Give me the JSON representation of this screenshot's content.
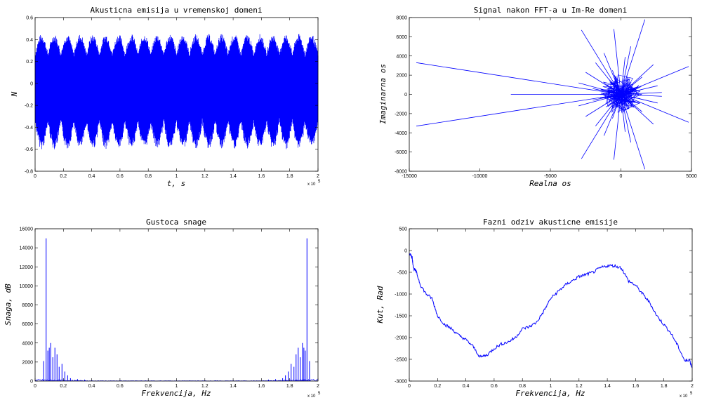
{
  "colors": {
    "series": "#0000ff",
    "axes": "#000000",
    "background": "#ffffff"
  },
  "chart_data": [
    {
      "type": "line",
      "title": "Akusticna emisija u vremenskoj domeni",
      "xlabel": "t, s",
      "ylabel": "N",
      "xlim": [
        0,
        200000
      ],
      "ylim": [
        -0.8,
        0.6
      ],
      "x_ticks": [
        "0",
        "0.2",
        "0.4",
        "0.6",
        "0.8",
        "1",
        "1.2",
        "1.4",
        "1.6",
        "1.8",
        "2"
      ],
      "y_ticks": [
        "-0.8",
        "-0.6",
        "-0.4",
        "-0.2",
        "0",
        "0.2",
        "0.4",
        "0.6"
      ],
      "x_multiplier": "x 10",
      "x_multiplier_exp": "5",
      "series": [
        {
          "kind": "dense-oscillation",
          "approx_upper_envelope": 0.45,
          "approx_lower_envelope": -0.6,
          "burst_count": 22
        }
      ]
    },
    {
      "type": "line",
      "title": "Signal nakon FFT-a u Im-Re domeni",
      "xlabel": "Realna os",
      "ylabel": "Imaginarna os",
      "xlim": [
        -15000,
        5000
      ],
      "ylim": [
        -8000,
        8000
      ],
      "x_ticks": [
        "-15000",
        "-10000",
        "-5000",
        "0",
        "5000"
      ],
      "y_ticks": [
        "-8000",
        "-6000",
        "-4000",
        "-2000",
        "0",
        "2000",
        "4000",
        "6000",
        "8000"
      ],
      "series": [
        {
          "kind": "star-burst",
          "points": [
            [
              -14500,
              3300
            ],
            [
              -14500,
              -3300
            ],
            [
              -7800,
              0
            ],
            [
              -2800,
              6700
            ],
            [
              -2800,
              -6700
            ],
            [
              -500,
              6800
            ],
            [
              -500,
              -6800
            ],
            [
              1700,
              7800
            ],
            [
              1700,
              -7800
            ],
            [
              4800,
              2900
            ],
            [
              4800,
              -2900
            ],
            [
              2900,
              200
            ],
            [
              2900,
              -200
            ],
            [
              2300,
              3100
            ],
            [
              2300,
              -3100
            ],
            [
              -2500,
              2300
            ],
            [
              -2500,
              -2300
            ],
            [
              -1800,
              3300
            ],
            [
              -1800,
              -3300
            ],
            [
              700,
              5000
            ],
            [
              700,
              -5000
            ],
            [
              -3000,
              1200
            ],
            [
              -3000,
              -1200
            ],
            [
              1500,
              1800
            ],
            [
              1500,
              -1800
            ],
            [
              -1200,
              4300
            ],
            [
              -1200,
              -4300
            ],
            [
              2600,
              900
            ],
            [
              2600,
              -900
            ],
            [
              -600,
              2500
            ],
            [
              -600,
              -2500
            ],
            [
              300,
              3900
            ],
            [
              300,
              -3900
            ],
            [
              -2000,
              600
            ],
            [
              -2000,
              -600
            ]
          ]
        }
      ]
    },
    {
      "type": "line",
      "title": "Gustoca snage",
      "xlabel": "Frekvencija, Hz",
      "ylabel": "Snaga, dB",
      "xlim": [
        0,
        200000
      ],
      "ylim": [
        0,
        16000
      ],
      "x_ticks": [
        "0",
        "0.2",
        "0.4",
        "0.6",
        "0.8",
        "1",
        "1.2",
        "1.4",
        "1.6",
        "1.8",
        "2"
      ],
      "y_ticks": [
        "0",
        "2000",
        "4000",
        "6000",
        "8000",
        "10000",
        "12000",
        "14000",
        "16000"
      ],
      "x_multiplier": "x 10",
      "x_multiplier_exp": "5",
      "series": [
        {
          "kind": "spectrum",
          "peaks": [
            [
              6000,
              2100
            ],
            [
              7800,
              15000
            ],
            [
              9000,
              3200
            ],
            [
              10000,
              3500
            ],
            [
              11000,
              4000
            ],
            [
              12500,
              2500
            ],
            [
              14000,
              3500
            ],
            [
              15500,
              2800
            ],
            [
              17000,
              1500
            ],
            [
              19000,
              1800
            ],
            [
              21000,
              1000
            ],
            [
              23000,
              600
            ],
            [
              25000,
              300
            ],
            [
              30000,
              200
            ],
            [
              35000,
              150
            ],
            [
              165000,
              150
            ],
            [
              170000,
              200
            ],
            [
              175000,
              300
            ],
            [
              177000,
              600
            ],
            [
              179000,
              1000
            ],
            [
              181000,
              1800
            ],
            [
              183000,
              1500
            ],
            [
              184500,
              2800
            ],
            [
              186000,
              3500
            ],
            [
              187500,
              2500
            ],
            [
              189000,
              4000
            ],
            [
              190000,
              3500
            ],
            [
              191000,
              3200
            ],
            [
              192200,
              15000
            ],
            [
              194000,
              2100
            ]
          ]
        }
      ]
    },
    {
      "type": "line",
      "title": "Fazni odziv akusticne emisije",
      "xlabel": "Frekvencija, Hz",
      "ylabel": "Kut, Rad",
      "xlim": [
        0,
        200000
      ],
      "ylim": [
        -3000,
        500
      ],
      "x_ticks": [
        "0",
        "0.2",
        "0.4",
        "0.6",
        "0.8",
        "1",
        "1.2",
        "1.4",
        "1.6",
        "1.8",
        "2"
      ],
      "y_ticks": [
        "-3000",
        "-2500",
        "-2000",
        "-1500",
        "-1000",
        "-500",
        "0",
        "500"
      ],
      "x_multiplier": "x 10",
      "x_multiplier_exp": "5",
      "series": [
        {
          "kind": "curve",
          "points": [
            [
              0,
              -50
            ],
            [
              2000,
              -150
            ],
            [
              3000,
              -400
            ],
            [
              5000,
              -500
            ],
            [
              8000,
              -800
            ],
            [
              12000,
              -1000
            ],
            [
              16000,
              -1100
            ],
            [
              20000,
              -1500
            ],
            [
              25000,
              -1700
            ],
            [
              30000,
              -1800
            ],
            [
              35000,
              -1950
            ],
            [
              40000,
              -2050
            ],
            [
              45000,
              -2200
            ],
            [
              50000,
              -2450
            ],
            [
              55000,
              -2400
            ],
            [
              60000,
              -2250
            ],
            [
              65000,
              -2150
            ],
            [
              70000,
              -2100
            ],
            [
              75000,
              -2000
            ],
            [
              80000,
              -1800
            ],
            [
              85000,
              -1750
            ],
            [
              90000,
              -1650
            ],
            [
              95000,
              -1400
            ],
            [
              100000,
              -1100
            ],
            [
              105000,
              -950
            ],
            [
              110000,
              -800
            ],
            [
              115000,
              -700
            ],
            [
              120000,
              -600
            ],
            [
              125000,
              -550
            ],
            [
              130000,
              -500
            ],
            [
              135000,
              -400
            ],
            [
              140000,
              -350
            ],
            [
              145000,
              -350
            ],
            [
              150000,
              -400
            ],
            [
              155000,
              -700
            ],
            [
              160000,
              -800
            ],
            [
              165000,
              -1000
            ],
            [
              170000,
              -1200
            ],
            [
              175000,
              -1500
            ],
            [
              180000,
              -1700
            ],
            [
              185000,
              -1900
            ],
            [
              190000,
              -2200
            ],
            [
              195000,
              -2550
            ],
            [
              198000,
              -2500
            ],
            [
              200000,
              -2700
            ]
          ]
        }
      ]
    }
  ]
}
